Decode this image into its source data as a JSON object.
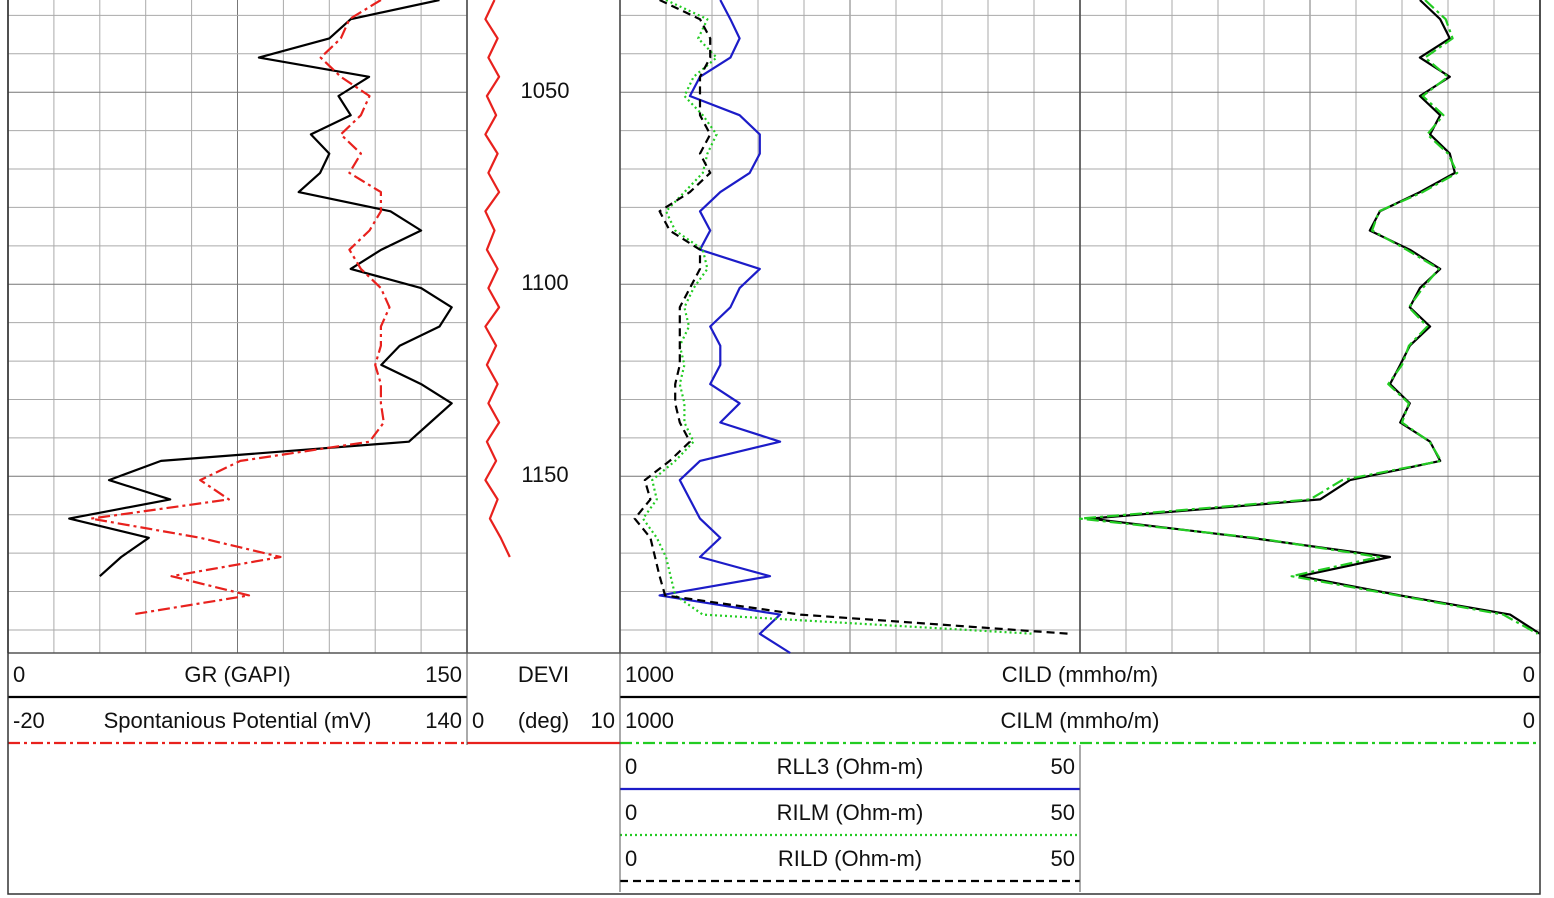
{
  "chart_data": {
    "type": "line",
    "ylim": [
      1026,
      1196
    ],
    "yticks": [
      1050,
      1100,
      1150
    ],
    "grid": true,
    "depth": [
      1026,
      1031,
      1036,
      1041,
      1046,
      1051,
      1056,
      1061,
      1066,
      1071,
      1076,
      1081,
      1086,
      1091,
      1096,
      1101,
      1106,
      1111,
      1116,
      1121,
      1126,
      1131,
      1136,
      1141,
      1146,
      1151,
      1156,
      1161,
      1166,
      1171,
      1176,
      1181,
      1186,
      1191,
      1196
    ],
    "tracks": [
      {
        "series": [
          {
            "name": "GR (GAPI)",
            "xlim": [
              0,
              150
            ],
            "color": "#000000",
            "dash": "solid",
            "values": [
              141,
              112,
              105,
              82,
              118,
              108,
              112,
              99,
              105,
              102,
              95,
              125,
              135,
              122,
              112,
              135,
              145,
              141,
              128,
              122,
              135,
              145,
              138,
              131,
              50,
              33,
              53,
              20,
              46,
              37,
              30,
              null,
              null,
              null,
              null
            ]
          },
          {
            "name": "Spontanious Potential (mV)",
            "xlim": [
              -20,
              140
            ],
            "color": "#e8211d",
            "dash": "dashdot",
            "values": [
              110,
              99,
              96,
              89,
              96,
              106,
              103,
              96,
              103,
              99,
              110,
              110,
              106,
              99,
              103,
              110,
              113,
              110,
              110,
              108,
              110,
              110,
              111,
              106,
              61,
              47,
              57,
              9,
              47,
              75,
              37,
              64,
              23,
              null,
              null
            ]
          }
        ]
      },
      {
        "series": [
          {
            "name": "DEVI",
            "unit": "(deg)",
            "xlim": [
              0,
              10
            ],
            "color": "#e8211d",
            "dash": "solid",
            "values": [
              1.8,
              1.2,
              2.0,
              1.4,
              2.1,
              1.3,
              1.9,
              1.2,
              2.0,
              1.4,
              2.1,
              1.2,
              1.8,
              1.3,
              2.0,
              1.4,
              2.1,
              1.2,
              1.9,
              1.3,
              2.0,
              1.4,
              2.1,
              1.3,
              1.9,
              1.2,
              2.0,
              1.5,
              2.2,
              2.8,
              null,
              null,
              null,
              null,
              null
            ]
          }
        ]
      },
      {
        "series": [
          {
            "name": "RLL3 (Ohm-m)",
            "xlim": [
              0,
              50
            ],
            "color": "#1c1cc8",
            "dash": "solid",
            "values": [
              10.9,
              12.0,
              13.0,
              12.0,
              8.7,
              7.6,
              13.0,
              15.2,
              15.2,
              14.1,
              10.9,
              8.7,
              9.8,
              8.7,
              15.2,
              13.0,
              12.0,
              9.8,
              10.9,
              10.9,
              9.8,
              13.0,
              10.9,
              17.4,
              8.7,
              6.5,
              7.6,
              8.7,
              10.9,
              8.7,
              16.3,
              4.3,
              17.4,
              15.2,
              18.5
            ]
          },
          {
            "name": "RILM (Ohm-m)",
            "xlim": [
              0,
              50
            ],
            "color": "#22cc22",
            "dash": "dotted",
            "values": [
              5.0,
              9.5,
              8.5,
              10.5,
              8.0,
              7.0,
              9.0,
              10.5,
              9.5,
              9.0,
              7.0,
              5.0,
              6.0,
              9.0,
              9.5,
              8.0,
              7.0,
              7.5,
              6.5,
              7.0,
              6.5,
              7.0,
              7.0,
              8.0,
              6.0,
              3.5,
              4.0,
              2.5,
              4.0,
              5.0,
              5.5,
              6.0,
              9.0,
              45,
              null
            ]
          },
          {
            "name": "RILD (Ohm-m)",
            "xlim": [
              0,
              50
            ],
            "color": "#000000",
            "dash": "dashed",
            "values": [
              4.3,
              8.7,
              9.8,
              9.8,
              8.7,
              8.7,
              8.7,
              9.8,
              8.7,
              9.8,
              7.6,
              4.3,
              5.4,
              8.7,
              8.7,
              7.6,
              6.5,
              6.5,
              6.5,
              6.5,
              6.0,
              6.0,
              6.5,
              7.6,
              5.4,
              2.7,
              3.3,
              1.6,
              3.3,
              3.8,
              4.3,
              4.9,
              19.6,
              48.9,
              null
            ]
          }
        ]
      },
      {
        "series": [
          {
            "name": "CILD (mmho/m)",
            "xlim": [
              1000,
              0
            ],
            "color": "#000000",
            "dash": "solid",
            "values": [
              261,
              217,
              196,
              261,
              196,
              261,
              217,
              239,
              196,
              185,
              261,
              348,
              370,
              283,
              217,
              261,
              283,
              239,
              283,
              304,
              326,
              283,
              304,
              239,
              217,
              413,
              478,
              978,
              630,
              326,
              522,
              304,
              65,
              0,
              null
            ]
          },
          {
            "name": "CILM (mmho/m)",
            "xlim": [
              1000,
              0
            ],
            "color": "#22cc22",
            "dash": "dashdot",
            "values": [
              250,
              205,
              190,
              250,
              200,
              255,
              210,
              245,
              200,
              180,
              255,
              350,
              365,
              290,
              220,
              255,
              285,
              245,
              285,
              300,
              330,
              285,
              300,
              240,
              215,
              430,
              500,
              1000,
              620,
              350,
              540,
              310,
              80,
              5,
              null
            ]
          }
        ]
      }
    ]
  }
}
